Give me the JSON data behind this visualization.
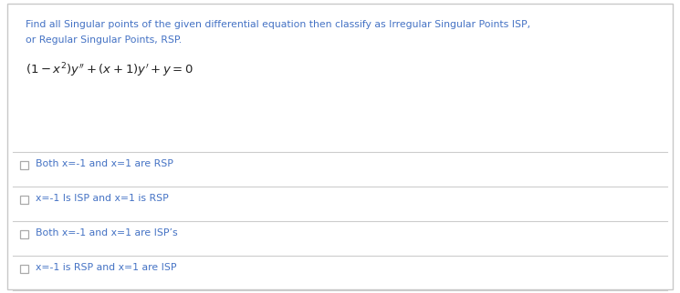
{
  "background_color": "#ffffff",
  "border_color": "#c8c8c8",
  "question_text_line1": "Find all Singular points of the given differential equation then classify as Irregular Singular Points ISP,",
  "question_text_line2": "or Regular Singular Points, RSP.",
  "question_color": "#4472c4",
  "equation_color": "#222222",
  "options": [
    "Both x=-1 and x=1 are RSP",
    "x=-1 Is ISP and x=1 is RSP",
    "Both x=-1 and x=1 are ISP’s",
    "x=-1 is RSP and x=1 are ISP"
  ],
  "option_color": "#4472c4",
  "checkbox_color": "#aaaaaa",
  "separator_color": "#cccccc",
  "fig_width": 7.45,
  "fig_height": 3.22,
  "dpi": 100
}
